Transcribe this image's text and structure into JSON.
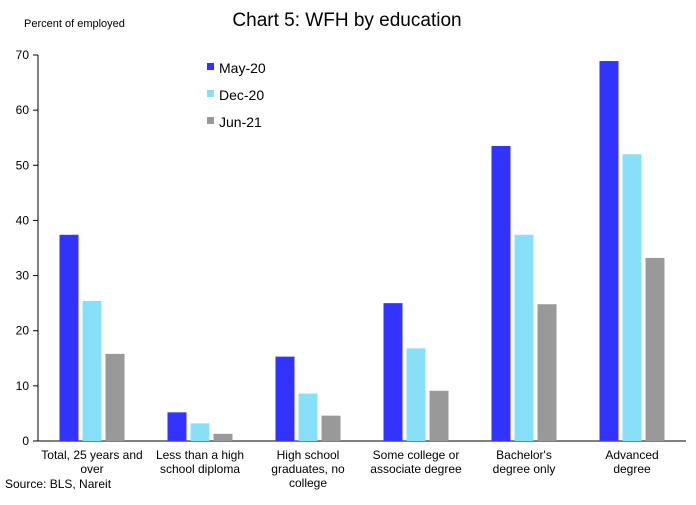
{
  "chart_data": {
    "type": "bar",
    "title": "Chart 5: WFH by education",
    "ylabel": "Percent of employed",
    "xlabel": "",
    "ylim": [
      0,
      70
    ],
    "yticks": [
      0,
      10,
      20,
      30,
      40,
      50,
      60,
      70
    ],
    "grid": false,
    "legend_position": "top-left",
    "categories": [
      [
        "Total, 25 years and",
        "over"
      ],
      [
        "Less than a high",
        "school diploma"
      ],
      [
        "High school",
        "graduates, no",
        "college"
      ],
      [
        "Some college or",
        "associate degree"
      ],
      [
        "Bachelor's",
        "degree only"
      ],
      [
        "Advanced",
        "degree"
      ]
    ],
    "series": [
      {
        "name": "May-20",
        "color": "#3333ff",
        "values": [
          37.4,
          5.2,
          15.3,
          25.0,
          53.5,
          68.9
        ]
      },
      {
        "name": "Dec-20",
        "color": "#88e0f8",
        "values": [
          25.4,
          3.2,
          8.6,
          16.8,
          37.4,
          52.0
        ]
      },
      {
        "name": "Jun-21",
        "color": "#999999",
        "values": [
          15.8,
          1.3,
          4.6,
          9.1,
          24.8,
          33.2
        ]
      }
    ],
    "source": "Source: BLS, Nareit"
  }
}
